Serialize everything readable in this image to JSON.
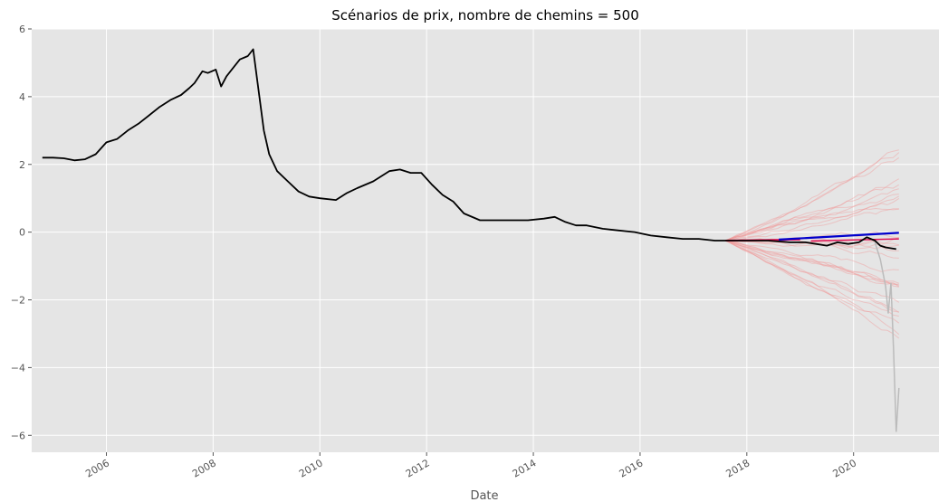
{
  "chart_data": {
    "type": "line",
    "title": "Scénarios de prix, nombre de chemins = 500",
    "xlabel": "Date",
    "ylabel": "",
    "xlim": [
      2004.6,
      2021.6
    ],
    "ylim": [
      -6.5,
      6.0
    ],
    "grid": true,
    "legend": "none",
    "x_ticks": [
      2006,
      2008,
      2010,
      2012,
      2014,
      2016,
      2018,
      2020
    ],
    "x_tick_labels": [
      "2006",
      "2008",
      "2010",
      "2012",
      "2014",
      "2016",
      "2018",
      "2020"
    ],
    "y_ticks": [
      6,
      4,
      2,
      0,
      -2,
      -4,
      -6
    ],
    "y_tick_labels": [
      "6",
      "4",
      "2",
      "0",
      "−2",
      "−4",
      "−6"
    ],
    "colors": {
      "plot_background": "#e5e5e5",
      "grid": "#ffffff",
      "historical": "#000000",
      "mean_path": "#0000cc",
      "scenario_band": "#f09a9a",
      "scenario_start": "#dd1155",
      "outlier_path": "#bbbbbb"
    },
    "series": [
      {
        "x": [
          2004.8,
          2005.0,
          2005.2,
          2005.4,
          2005.6,
          2005.8,
          2006.0,
          2006.2,
          2006.4,
          2006.6,
          2006.8,
          2007.0,
          2007.2,
          2007.4,
          2007.55,
          2007.65,
          2007.8,
          2007.9,
          2008.05,
          2008.15,
          2008.25,
          2008.5,
          2008.65,
          2008.75,
          2008.85,
          2008.95,
          2009.05,
          2009.2,
          2009.4,
          2009.6,
          2009.8,
          2010.0,
          2010.3,
          2010.5,
          2010.7,
          2011.0,
          2011.3,
          2011.5,
          2011.7,
          2011.9,
          2012.1,
          2012.3,
          2012.5,
          2012.7,
          2013.0,
          2013.3,
          2013.6,
          2013.9,
          2014.2,
          2014.4,
          2014.6,
          2014.8,
          2015.0,
          2015.3,
          2015.6,
          2015.9,
          2016.2,
          2016.5,
          2016.8,
          2017.1,
          2017.4,
          2017.6,
          2017.8,
          2018.0,
          2018.4,
          2018.8,
          2019.1,
          2019.3,
          2019.5,
          2019.7,
          2019.9,
          2020.1,
          2020.25,
          2020.4,
          2020.5,
          2020.6,
          2020.8
        ],
        "y": [
          2.2,
          2.2,
          2.18,
          2.12,
          2.15,
          2.3,
          2.65,
          2.75,
          3.0,
          3.2,
          3.45,
          3.7,
          3.9,
          4.05,
          4.25,
          4.4,
          4.75,
          4.7,
          4.8,
          4.3,
          4.6,
          5.1,
          5.2,
          5.4,
          4.2,
          3.0,
          2.3,
          1.8,
          1.5,
          1.2,
          1.05,
          1.0,
          0.95,
          1.15,
          1.3,
          1.5,
          1.8,
          1.85,
          1.75,
          1.75,
          1.4,
          1.1,
          0.9,
          0.55,
          0.35,
          0.35,
          0.35,
          0.35,
          0.4,
          0.45,
          0.3,
          0.2,
          0.2,
          0.1,
          0.05,
          0.0,
          -0.1,
          -0.15,
          -0.2,
          -0.2,
          -0.25,
          -0.25,
          -0.25,
          -0.25,
          -0.25,
          -0.3,
          -0.3,
          -0.35,
          -0.4,
          -0.3,
          -0.35,
          -0.3,
          -0.15,
          -0.25,
          -0.4,
          -0.45,
          -0.5
        ]
      }
    ]
  }
}
